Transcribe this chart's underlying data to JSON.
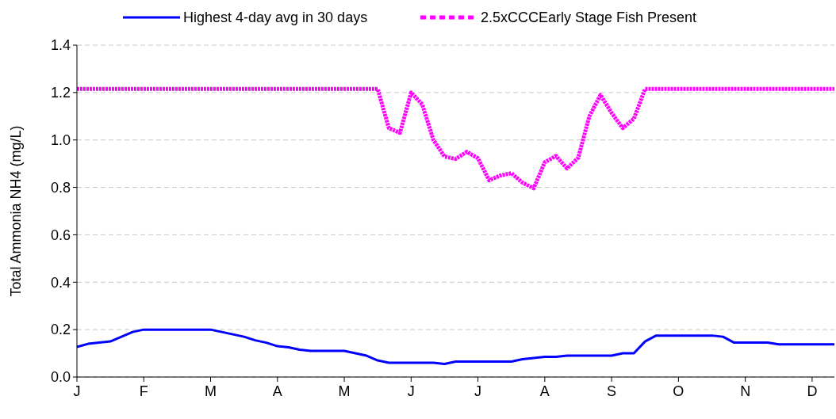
{
  "chart_data": {
    "type": "line",
    "ylabel": "Total Ammonia NH4 (mg/L)",
    "categories": [
      "J",
      null,
      null,
      null,
      null,
      null,
      "F",
      null,
      null,
      null,
      null,
      null,
      "M",
      null,
      null,
      null,
      null,
      null,
      "A",
      null,
      null,
      null,
      null,
      null,
      "M",
      null,
      null,
      null,
      null,
      null,
      "J",
      null,
      null,
      null,
      null,
      null,
      "J",
      null,
      null,
      null,
      null,
      null,
      "A",
      null,
      null,
      null,
      null,
      null,
      "S",
      null,
      null,
      null,
      null,
      null,
      "O",
      null,
      null,
      null,
      null,
      null,
      "N",
      null,
      null,
      null,
      null,
      null,
      "D",
      null,
      null
    ],
    "ylim": [
      0,
      1.4
    ],
    "yticks": [
      {
        "value": 0,
        "label": "0.0"
      },
      {
        "value": 0.2,
        "label": "0.2"
      },
      {
        "value": 0.4,
        "label": "0.4"
      },
      {
        "value": 0.6,
        "label": "0.6"
      },
      {
        "value": 0.8,
        "label": "0.8"
      },
      {
        "value": 1,
        "label": "1.0"
      },
      {
        "value": 1.2,
        "label": "1.2"
      },
      {
        "value": 1.4,
        "label": "1.4"
      }
    ],
    "grid": "y",
    "legend": "top",
    "marker": "none",
    "series": [
      {
        "name": "Highest 4-day avg in 30 days",
        "color": "#0000ff",
        "line_style": "solid",
        "values": [
          0.127,
          0.14,
          0.145,
          0.15,
          0.17,
          0.19,
          0.2,
          0.2,
          0.2,
          0.2,
          0.2,
          0.2,
          0.2,
          0.19,
          0.18,
          0.17,
          0.155,
          0.145,
          0.13,
          0.125,
          0.115,
          0.11,
          0.11,
          0.11,
          0.11,
          0.1,
          0.09,
          0.07,
          0.06,
          0.06,
          0.06,
          0.06,
          0.06,
          0.055,
          0.065,
          0.065,
          0.065,
          0.065,
          0.065,
          0.065,
          0.075,
          0.08,
          0.085,
          0.085,
          0.09,
          0.09,
          0.09,
          0.09,
          0.09,
          0.1,
          0.1,
          0.15,
          0.175,
          0.175,
          0.175,
          0.175,
          0.175,
          0.175,
          0.17,
          0.145,
          0.145,
          0.145,
          0.145,
          0.138,
          0.138,
          0.138,
          0.138,
          0.138,
          0.138
        ]
      },
      {
        "name": "2.5xCCCEarly Stage Fish Present",
        "color": "#ff00ff",
        "line_style": "dashed",
        "values": [
          1.215,
          1.215,
          1.215,
          1.215,
          1.215,
          1.215,
          1.215,
          1.215,
          1.215,
          1.215,
          1.215,
          1.215,
          1.215,
          1.215,
          1.215,
          1.215,
          1.215,
          1.215,
          1.215,
          1.215,
          1.215,
          1.215,
          1.215,
          1.215,
          1.215,
          1.215,
          1.215,
          1.215,
          1.05,
          1.03,
          1.2,
          1.15,
          1.0,
          0.93,
          0.92,
          0.95,
          0.923,
          0.83,
          0.85,
          0.86,
          0.82,
          0.796,
          0.906,
          0.933,
          0.88,
          0.925,
          1.1,
          1.19,
          1.114,
          1.05,
          1.09,
          1.215,
          1.215,
          1.215,
          1.215,
          1.215,
          1.215,
          1.215,
          1.215,
          1.215,
          1.215,
          1.215,
          1.215,
          1.215,
          1.215,
          1.215,
          1.215,
          1.215,
          1.215
        ]
      }
    ]
  }
}
